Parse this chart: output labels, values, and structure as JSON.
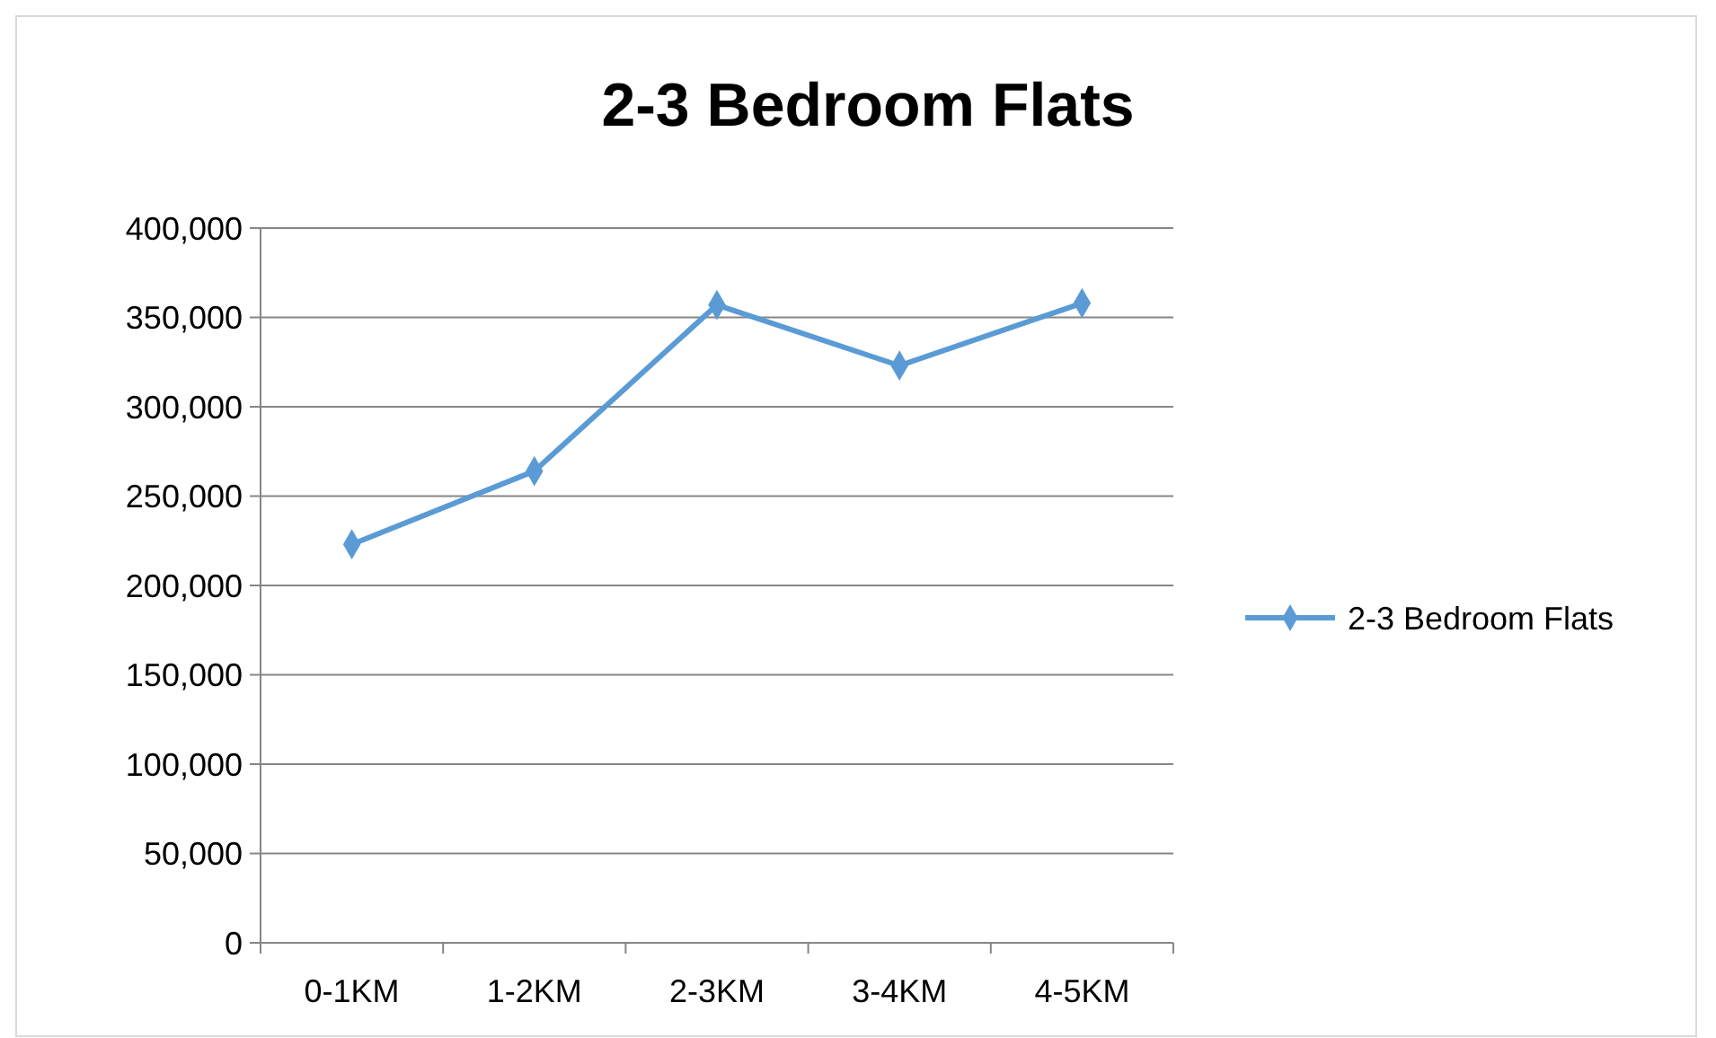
{
  "chart_data": {
    "type": "line",
    "title": "2-3 Bedroom Flats",
    "categories": [
      "0-1KM",
      "1-2KM",
      "2-3KM",
      "3-4KM",
      "4-5KM"
    ],
    "series": [
      {
        "name": "2-3 Bedroom Flats",
        "color": "#5b9bd5",
        "values": [
          223000,
          264000,
          357000,
          323000,
          358000
        ]
      }
    ],
    "ylim": [
      0,
      400000
    ],
    "yticks": [
      0,
      {
        "value": 50000,
        "label": "50,000"
      },
      {
        "value": 100000,
        "label": "100,000"
      },
      {
        "value": 150000,
        "label": "150,000"
      },
      {
        "value": 200000,
        "label": "200,000"
      },
      {
        "value": 250000,
        "label": "250,000"
      },
      {
        "value": 300000,
        "label": "300,000"
      },
      {
        "value": 350000,
        "label": "350,000"
      },
      {
        "value": 400000,
        "label": "400,000"
      }
    ],
    "grid": "y",
    "legend": "right",
    "marker": "diamond",
    "line_style": "solid"
  }
}
